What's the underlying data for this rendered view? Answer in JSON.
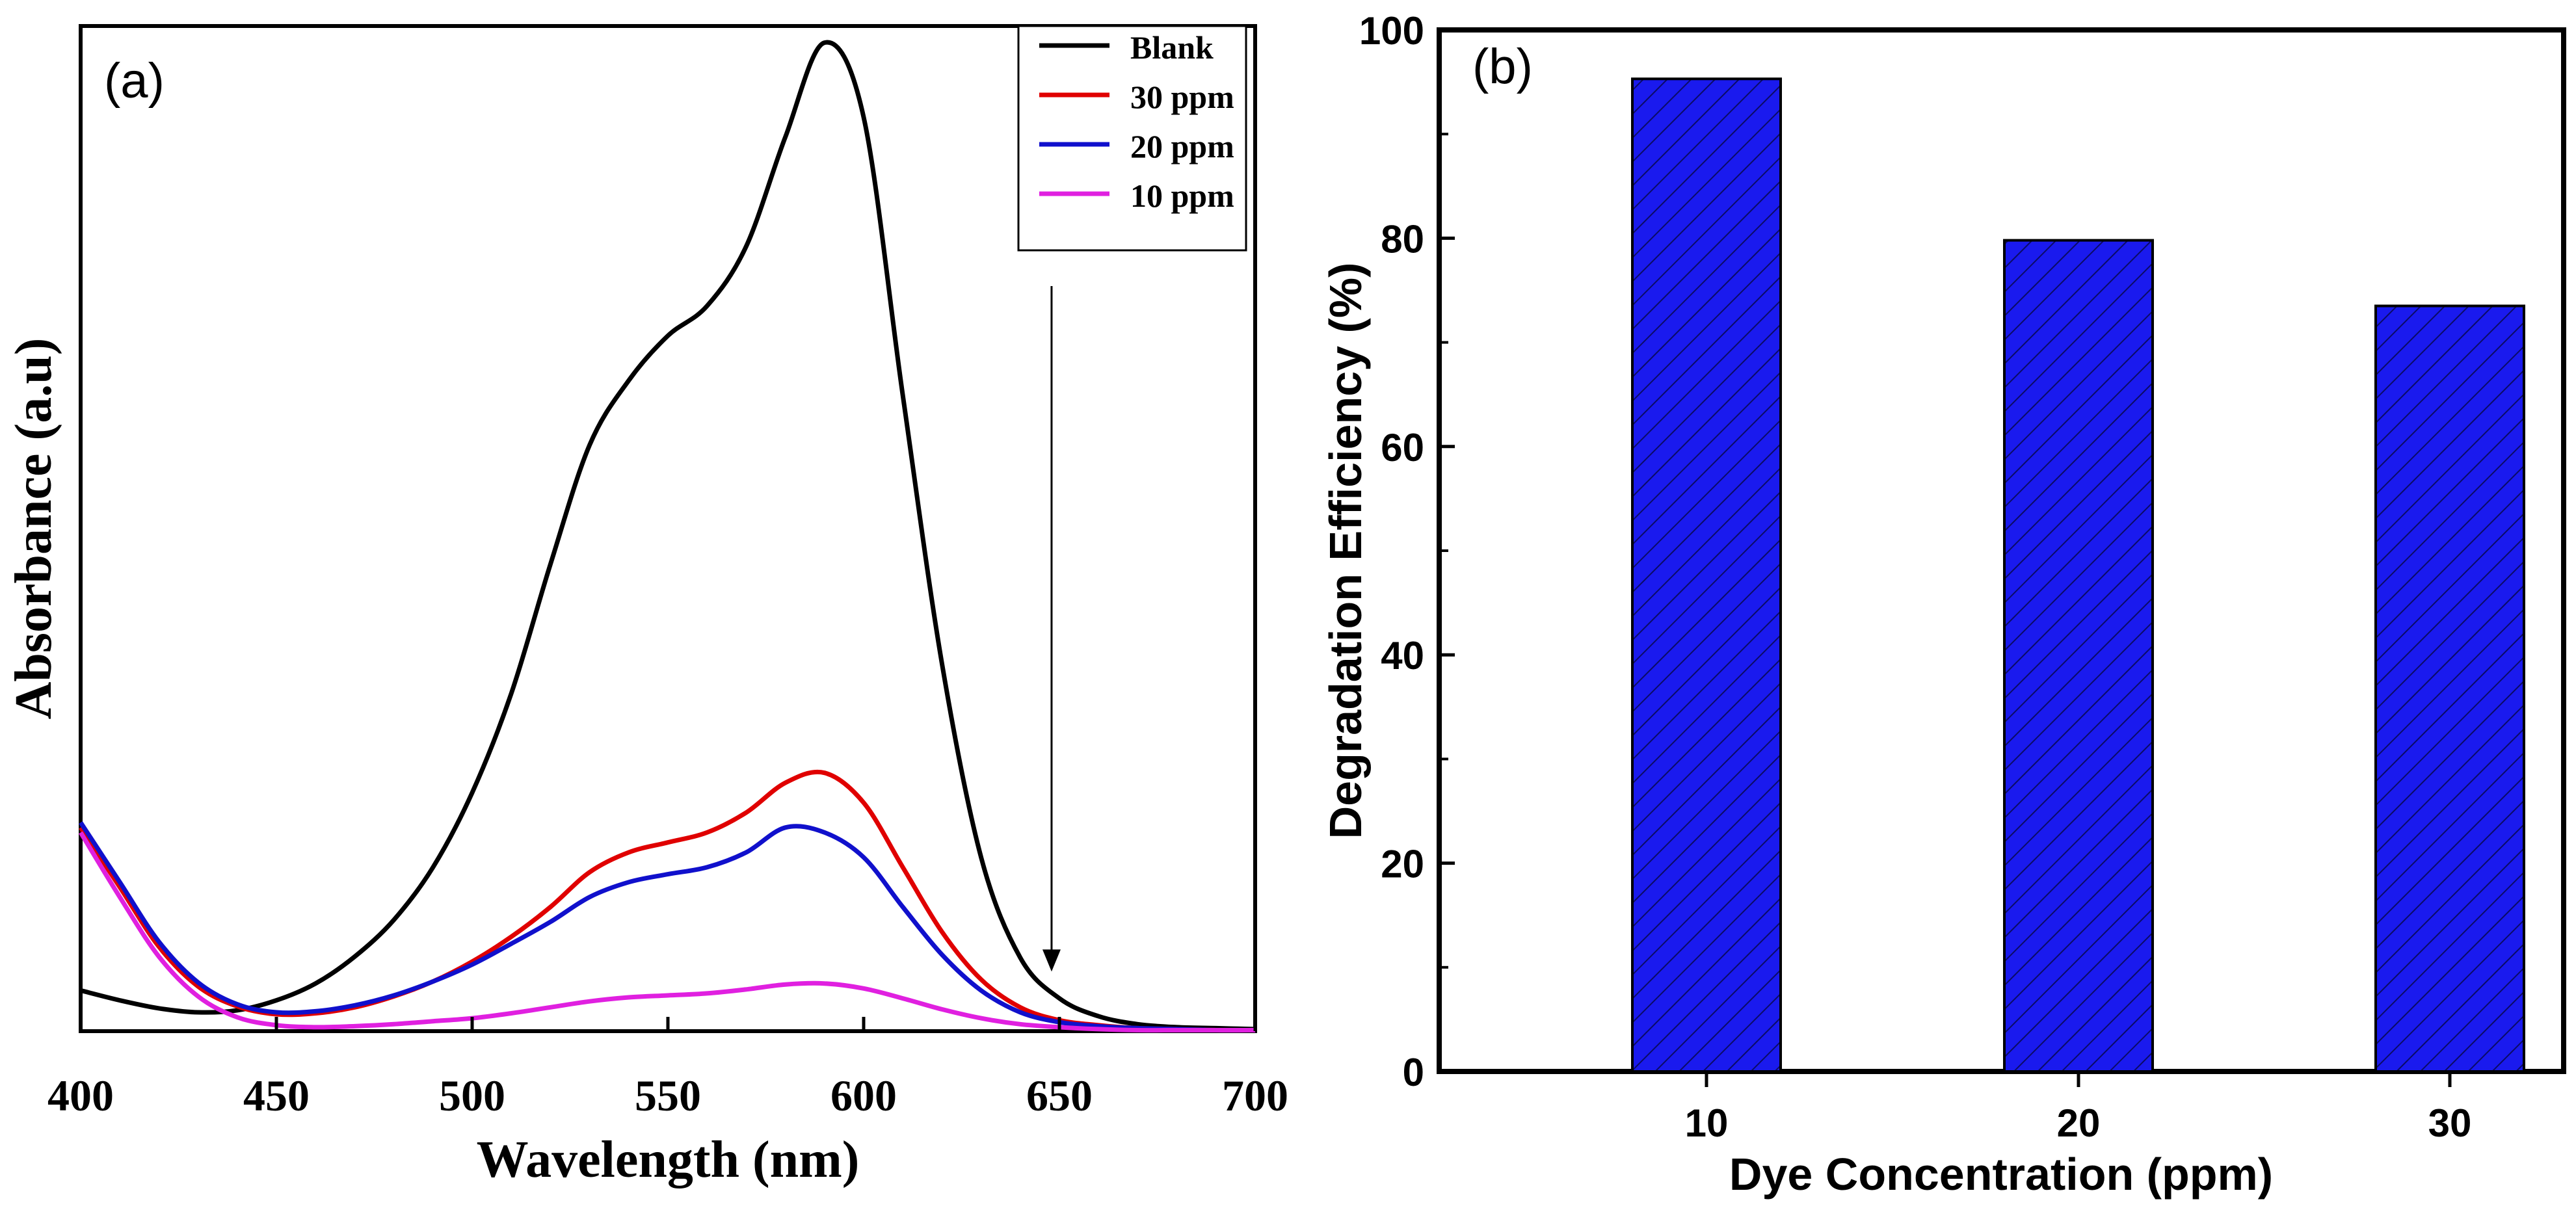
{
  "chart_data": [
    {
      "type": "line",
      "panel_label": "(a)",
      "title": "",
      "xlabel": "Wavelength (nm)",
      "ylabel": "Absorbance (a.u)",
      "xlim": [
        400,
        700
      ],
      "ylim": [
        0,
        1.0
      ],
      "x_ticks": [
        400,
        450,
        500,
        550,
        600,
        650,
        700
      ],
      "x_tick_labels": [
        "400",
        "450",
        "500",
        "550",
        "600",
        "650",
        "700"
      ],
      "y_ticks_shown": false,
      "legend_position": "top-right",
      "annotation": "downward arrow at ~648 nm indicating decreasing absorbance",
      "arrow_x": 648,
      "arrow_y_start": 0.75,
      "arrow_y_end": 0.06,
      "series": [
        {
          "name": "Blank",
          "color": "#000000",
          "x": [
            400,
            410,
            420,
            430,
            440,
            450,
            460,
            470,
            480,
            490,
            500,
            510,
            520,
            530,
            540,
            550,
            560,
            570,
            580,
            590,
            600,
            610,
            620,
            630,
            640,
            650,
            660,
            670,
            680,
            690,
            700
          ],
          "y": [
            0.041,
            0.031,
            0.023,
            0.019,
            0.021,
            0.031,
            0.048,
            0.075,
            0.112,
            0.165,
            0.24,
            0.34,
            0.47,
            0.59,
            0.655,
            0.7,
            0.73,
            0.79,
            0.9,
            0.995,
            0.92,
            0.64,
            0.37,
            0.175,
            0.074,
            0.033,
            0.015,
            0.007,
            0.004,
            0.003,
            0.002
          ]
        },
        {
          "name": "30 ppm",
          "color": "#e00000",
          "x": [
            400,
            410,
            420,
            430,
            440,
            450,
            460,
            470,
            480,
            490,
            500,
            510,
            520,
            530,
            540,
            550,
            560,
            570,
            580,
            590,
            600,
            610,
            620,
            630,
            640,
            650,
            660,
            670,
            680,
            690,
            700
          ],
          "y": [
            0.205,
            0.145,
            0.085,
            0.045,
            0.025,
            0.017,
            0.018,
            0.024,
            0.035,
            0.05,
            0.07,
            0.095,
            0.125,
            0.16,
            0.18,
            0.19,
            0.2,
            0.22,
            0.25,
            0.26,
            0.23,
            0.165,
            0.1,
            0.052,
            0.024,
            0.011,
            0.006,
            0.003,
            0.002,
            0.001,
            0.001
          ]
        },
        {
          "name": "20 ppm",
          "color": "#1010cc",
          "x": [
            400,
            410,
            420,
            430,
            440,
            450,
            460,
            470,
            480,
            490,
            500,
            510,
            520,
            530,
            540,
            550,
            560,
            570,
            580,
            590,
            600,
            610,
            620,
            630,
            640,
            650,
            660,
            670,
            680,
            690,
            700
          ],
          "y": [
            0.21,
            0.15,
            0.09,
            0.049,
            0.027,
            0.019,
            0.02,
            0.026,
            0.036,
            0.05,
            0.067,
            0.088,
            0.11,
            0.135,
            0.15,
            0.158,
            0.165,
            0.18,
            0.205,
            0.2,
            0.175,
            0.125,
            0.077,
            0.041,
            0.019,
            0.009,
            0.005,
            0.003,
            0.002,
            0.001,
            0.001
          ]
        },
        {
          "name": "10 ppm",
          "color": "#e020e0",
          "x": [
            400,
            410,
            420,
            430,
            440,
            450,
            460,
            470,
            480,
            490,
            500,
            510,
            520,
            530,
            540,
            550,
            560,
            570,
            580,
            590,
            600,
            610,
            620,
            630,
            640,
            650,
            660,
            670,
            680,
            690,
            700
          ],
          "y": [
            0.2,
            0.135,
            0.075,
            0.035,
            0.014,
            0.006,
            0.004,
            0.005,
            0.007,
            0.01,
            0.013,
            0.018,
            0.024,
            0.03,
            0.034,
            0.036,
            0.038,
            0.042,
            0.047,
            0.048,
            0.043,
            0.033,
            0.022,
            0.013,
            0.007,
            0.004,
            0.002,
            0.001,
            0.001,
            0.001,
            0.001
          ]
        }
      ]
    },
    {
      "type": "bar",
      "panel_label": "(b)",
      "title": "",
      "xlabel": "Dye Concentration (ppm)",
      "ylabel": "Degradation Efficiency (%)",
      "categories": [
        "10",
        "20",
        "30"
      ],
      "values": [
        95.3,
        79.8,
        73.5
      ],
      "ylim": [
        0,
        100
      ],
      "y_ticks": [
        0,
        20,
        40,
        60,
        80,
        100
      ],
      "y_tick_labels": [
        "0",
        "20",
        "40",
        "60",
        "80",
        "100"
      ],
      "bar_color": "#1a1aee",
      "bar_hatch": "diagonal"
    }
  ]
}
